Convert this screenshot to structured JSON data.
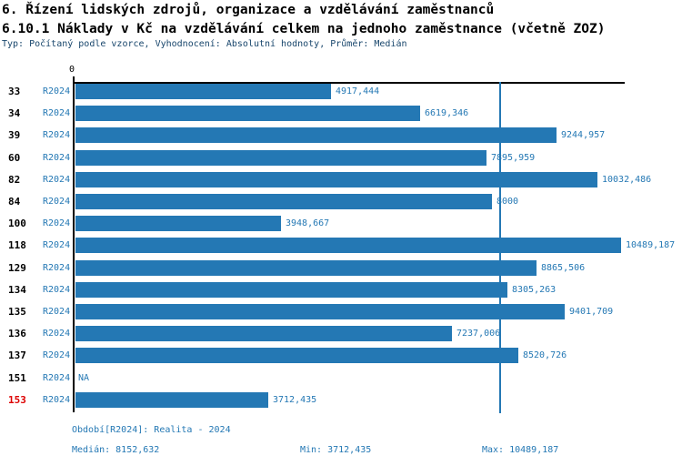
{
  "header": {
    "title_line1": "6. Řízení lidských zdrojů, organizace a vzdělávání zaměstnanců",
    "title_line2": "6.10.1 Náklady v Kč na vzdělávání celkem na jednoho zaměstnance (včetně ZOZ)",
    "subtitle": "Typ: Počítaný podle vzorce, Vyhodnocení: Absolutní hodnoty, Průměr: Medián"
  },
  "chart_data": {
    "type": "bar",
    "orientation": "horizontal",
    "title": "6.10.1 Náklady v Kč na vzdělávání celkem na jednoho zaměstnance (včetně ZOZ)",
    "xlabel": "",
    "ylabel": "",
    "zero_tick_label": "0",
    "xlim": [
      0,
      10500
    ],
    "grid": false,
    "legend_position": "none",
    "series_label": "R2024",
    "categories": [
      "33",
      "34",
      "39",
      "60",
      "82",
      "84",
      "100",
      "118",
      "129",
      "134",
      "135",
      "136",
      "137",
      "151",
      "153"
    ],
    "rows": [
      {
        "id": "33",
        "period": "R2024",
        "value": 4917.444,
        "value_label": "4917,444",
        "id_highlight": false
      },
      {
        "id": "34",
        "period": "R2024",
        "value": 6619.346,
        "value_label": "6619,346",
        "id_highlight": false
      },
      {
        "id": "39",
        "period": "R2024",
        "value": 9244.957,
        "value_label": "9244,957",
        "id_highlight": false
      },
      {
        "id": "60",
        "period": "R2024",
        "value": 7895.959,
        "value_label": "7895,959",
        "id_highlight": false
      },
      {
        "id": "82",
        "period": "R2024",
        "value": 10032.486,
        "value_label": "10032,486",
        "id_highlight": false
      },
      {
        "id": "84",
        "period": "R2024",
        "value": 8000,
        "value_label": "8000",
        "id_highlight": false
      },
      {
        "id": "100",
        "period": "R2024",
        "value": 3948.667,
        "value_label": "3948,667",
        "id_highlight": false
      },
      {
        "id": "118",
        "period": "R2024",
        "value": 10489.187,
        "value_label": "10489,187",
        "id_highlight": false
      },
      {
        "id": "129",
        "period": "R2024",
        "value": 8865.506,
        "value_label": "8865,506",
        "id_highlight": false
      },
      {
        "id": "134",
        "period": "R2024",
        "value": 8305.263,
        "value_label": "8305,263",
        "id_highlight": false
      },
      {
        "id": "135",
        "period": "R2024",
        "value": 9401.709,
        "value_label": "9401,709",
        "id_highlight": false
      },
      {
        "id": "136",
        "period": "R2024",
        "value": 7237.006,
        "value_label": "7237,006",
        "id_highlight": false
      },
      {
        "id": "137",
        "period": "R2024",
        "value": 8520.726,
        "value_label": "8520,726",
        "id_highlight": false
      },
      {
        "id": "151",
        "period": "R2024",
        "value": null,
        "value_label": "NA",
        "id_highlight": false
      },
      {
        "id": "153",
        "period": "R2024",
        "value": 3712.435,
        "value_label": "3712,435",
        "id_highlight": true
      }
    ],
    "median_value": 8152.632,
    "min_value": 3712.435,
    "max_value": 10489.187
  },
  "footer": {
    "period_label": "Období[R2024]: Realita - 2024",
    "median_label": "Medián: 8152,632",
    "min_label": "Min: 3712,435",
    "max_label": "Max: 10489,187"
  },
  "colors": {
    "bar": "#2478B4",
    "blue_text": "#2478B4",
    "subtitle_text": "#17456B",
    "axis": "#000000",
    "highlight_id": "#DD0000",
    "background": "#FFFFFF"
  }
}
